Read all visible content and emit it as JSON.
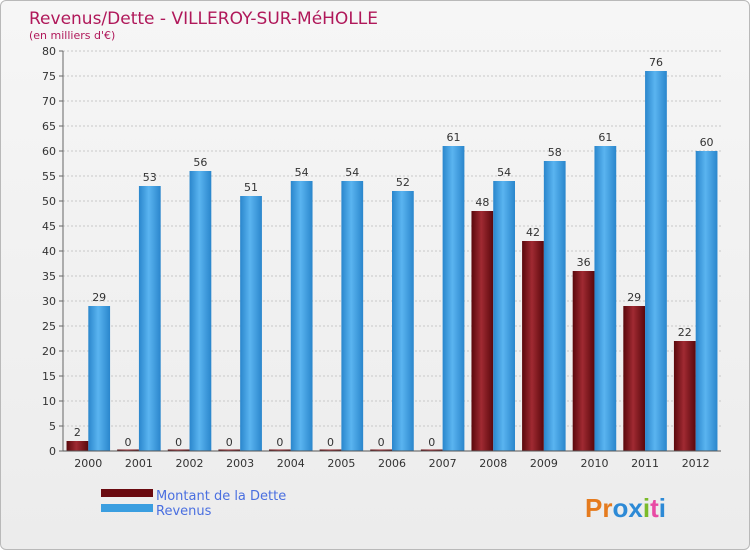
{
  "chart_data": {
    "type": "bar",
    "title": "Revenus/Dette - VILLEROY-SUR-MéHOLLE",
    "subtitle": "(en milliers d'€)",
    "categories": [
      "2000",
      "2001",
      "2002",
      "2003",
      "2004",
      "2005",
      "2006",
      "2007",
      "2008",
      "2009",
      "2010",
      "2011",
      "2012"
    ],
    "series": [
      {
        "name": "Montant de la Dette",
        "color": "#7a1016",
        "values": [
          2,
          0,
          0,
          0,
          0,
          0,
          0,
          0,
          48,
          42,
          36,
          29,
          22
        ]
      },
      {
        "name": "Revenus",
        "color": "#3a9ee0",
        "values": [
          29,
          53,
          56,
          51,
          54,
          54,
          52,
          61,
          54,
          58,
          61,
          76,
          60
        ]
      }
    ],
    "ylim": [
      0,
      80
    ],
    "yticks": [
      0,
      5,
      10,
      15,
      20,
      25,
      30,
      35,
      40,
      45,
      50,
      55,
      60,
      65,
      70,
      75,
      80
    ],
    "grid": true,
    "legend_position": "bottom-left"
  },
  "brand": {
    "logo_text": "Proxiti"
  }
}
